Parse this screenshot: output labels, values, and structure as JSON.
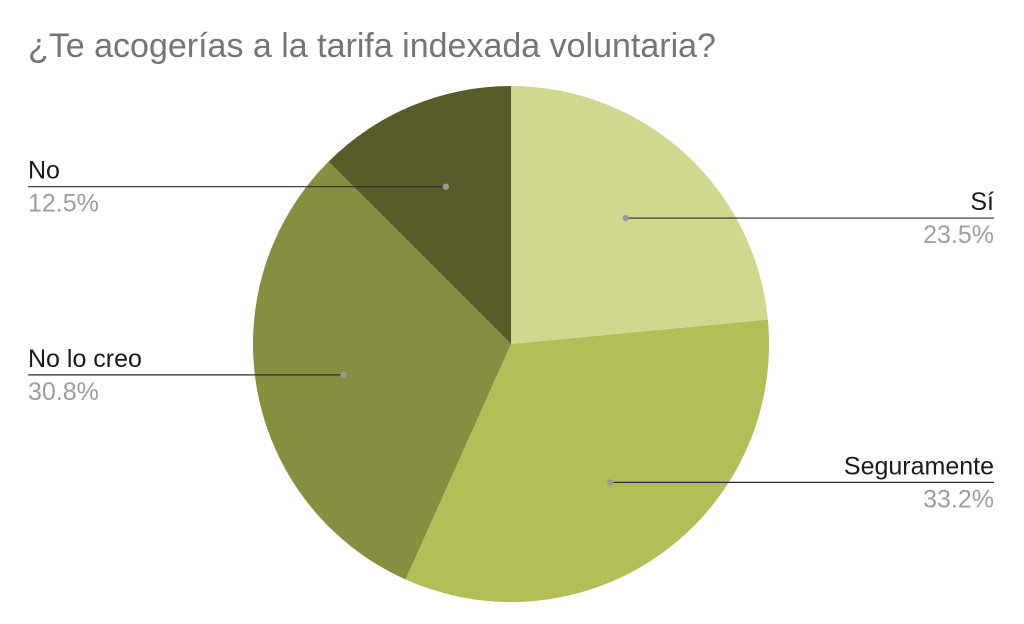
{
  "chart_data": {
    "type": "pie",
    "title": "¿Te acogerías a la tarifa indexada voluntaria?",
    "slices": [
      {
        "label": "Sí",
        "value": 23.5,
        "display": "23.5%",
        "color": "#d0d890"
      },
      {
        "label": "Seguramente",
        "value": 33.2,
        "display": "33.2%",
        "color": "#b2be58"
      },
      {
        "label": "No lo creo",
        "value": 30.8,
        "display": "30.8%",
        "color": "#878e40"
      },
      {
        "label": "No",
        "value": 12.5,
        "display": "12.5%",
        "color": "#575c2a"
      }
    ],
    "start_angle": "12 o'clock",
    "direction": "clockwise",
    "legend": "none",
    "label_style": "outside labels with leader lines"
  }
}
